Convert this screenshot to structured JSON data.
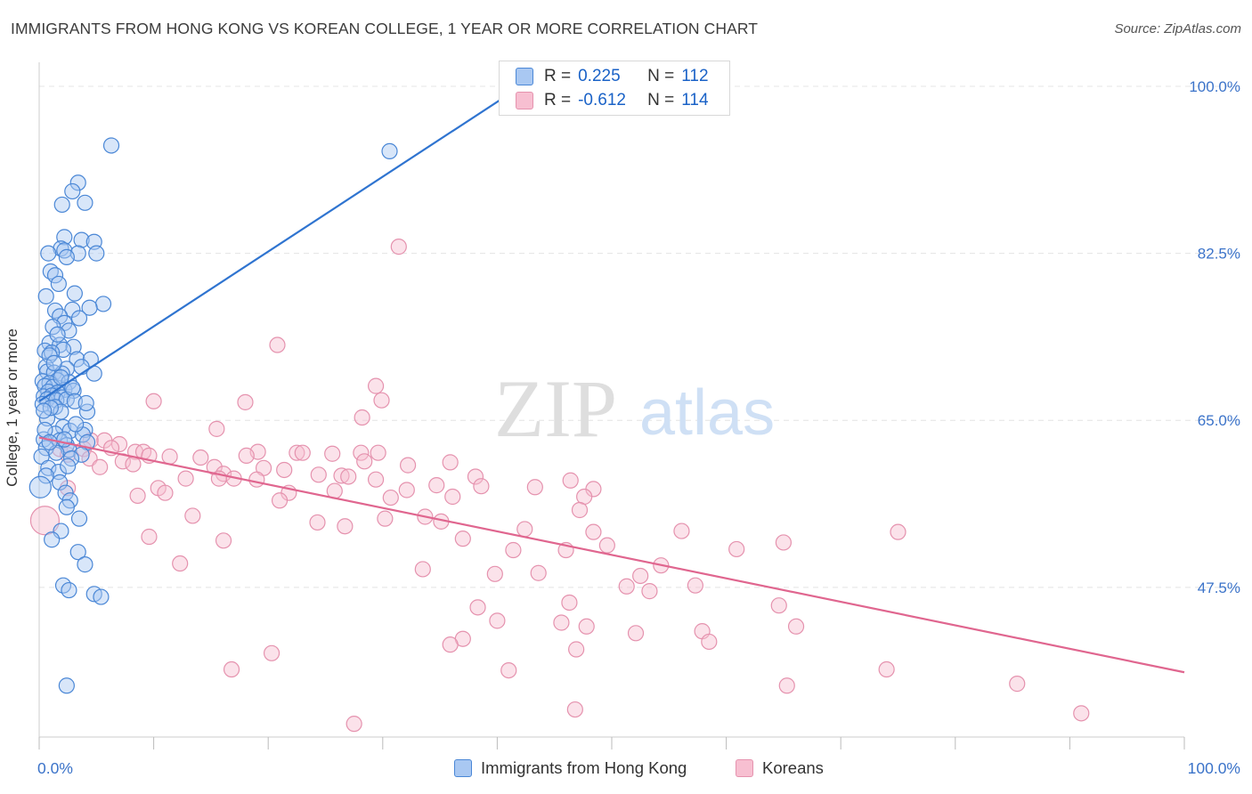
{
  "title": "IMMIGRANTS FROM HONG KONG VS KOREAN COLLEGE, 1 YEAR OR MORE CORRELATION CHART",
  "source": "Source: ZipAtlas.com",
  "watermark": {
    "zip": "ZIP",
    "atlas": "atlas"
  },
  "legend_stats": [
    {
      "r_label": "R =",
      "r_value": "0.225",
      "n_label": "N =",
      "n_value": "112"
    },
    {
      "r_label": "R =",
      "r_value": "-0.612",
      "n_label": "N =",
      "n_value": "114"
    }
  ],
  "chart_data": {
    "type": "scatter",
    "title": "IMMIGRANTS FROM HONG KONG VS KOREAN COLLEGE, 1 YEAR OR MORE CORRELATION CHART",
    "xlabel": "",
    "ylabel": "College, 1 year or more",
    "xlim": [
      0,
      100
    ],
    "ylim": [
      32,
      100
    ],
    "x_tick_labels": [
      {
        "value": 0,
        "label": "0.0%"
      },
      {
        "value": 100,
        "label": "100.0%"
      }
    ],
    "y_tick_labels": [
      {
        "value": 47.5,
        "label": "47.5%"
      },
      {
        "value": 65.0,
        "label": "65.0%"
      },
      {
        "value": 82.5,
        "label": "82.5%"
      },
      {
        "value": 100.0,
        "label": "100.0%"
      }
    ],
    "grid": true,
    "legend_position": "bottom",
    "colors": {
      "hk_fill": "#a9c8f2",
      "hk_stroke": "#4a87d6",
      "hk_line": "#2f74d0",
      "kr_fill": "#f7bfd1",
      "kr_stroke": "#e592ae",
      "kr_line": "#e0668f",
      "grid": "#e4e4e4",
      "tick_label": "#3b73c9"
    },
    "series": [
      {
        "name": "Immigrants from Hong Kong",
        "r": 0.225,
        "n": 112,
        "trend": {
          "x": [
            0.0,
            40.8
          ],
          "y": [
            67.0,
            99.0
          ]
        },
        "points": [
          [
            6.3,
            93.8
          ],
          [
            30.6,
            93.2
          ],
          [
            3.4,
            89.9
          ],
          [
            2.9,
            89.0
          ],
          [
            2.0,
            87.6
          ],
          [
            4.0,
            87.8
          ],
          [
            2.2,
            84.2
          ],
          [
            3.7,
            83.9
          ],
          [
            4.8,
            83.7
          ],
          [
            1.9,
            83.0
          ],
          [
            2.2,
            82.8
          ],
          [
            0.8,
            82.5
          ],
          [
            3.4,
            82.5
          ],
          [
            5.0,
            82.5
          ],
          [
            2.4,
            82.1
          ],
          [
            1.0,
            80.6
          ],
          [
            1.4,
            80.2
          ],
          [
            1.7,
            79.3
          ],
          [
            3.1,
            78.3
          ],
          [
            0.6,
            78.0
          ],
          [
            5.6,
            77.2
          ],
          [
            4.4,
            76.8
          ],
          [
            1.4,
            76.5
          ],
          [
            2.9,
            76.6
          ],
          [
            1.8,
            75.9
          ],
          [
            3.5,
            75.7
          ],
          [
            2.2,
            75.2
          ],
          [
            1.2,
            74.8
          ],
          [
            2.6,
            74.4
          ],
          [
            0.9,
            73.1
          ],
          [
            1.8,
            72.9
          ],
          [
            3.0,
            72.7
          ],
          [
            2.1,
            72.4
          ],
          [
            0.5,
            72.3
          ],
          [
            1.1,
            72.1
          ],
          [
            0.9,
            71.8
          ],
          [
            3.3,
            71.4
          ],
          [
            4.5,
            71.4
          ],
          [
            0.6,
            70.6
          ],
          [
            2.4,
            70.4
          ],
          [
            3.7,
            70.6
          ],
          [
            0.7,
            70.1
          ],
          [
            1.3,
            70.0
          ],
          [
            2.0,
            69.9
          ],
          [
            4.8,
            69.9
          ],
          [
            0.3,
            69.1
          ],
          [
            1.6,
            69.2
          ],
          [
            0.9,
            68.9
          ],
          [
            2.6,
            69.0
          ],
          [
            0.5,
            68.6
          ],
          [
            1.2,
            68.5
          ],
          [
            2.2,
            68.2
          ],
          [
            3.0,
            68.1
          ],
          [
            0.8,
            68.0
          ],
          [
            1.6,
            67.9
          ],
          [
            0.4,
            67.5
          ],
          [
            1.1,
            67.6
          ],
          [
            2.0,
            67.4
          ],
          [
            0.7,
            67.2
          ],
          [
            1.5,
            67.1
          ],
          [
            2.4,
            67.2
          ],
          [
            0.3,
            66.7
          ],
          [
            1.4,
            66.4
          ],
          [
            1.9,
            65.9
          ],
          [
            4.2,
            65.9
          ],
          [
            0.7,
            65.2
          ],
          [
            2.1,
            64.3
          ],
          [
            4.0,
            64.0
          ],
          [
            2.7,
            63.9
          ],
          [
            1.4,
            63.6
          ],
          [
            3.8,
            63.5
          ],
          [
            0.4,
            63.0
          ],
          [
            1.8,
            62.9
          ],
          [
            4.2,
            62.7
          ],
          [
            2.4,
            62.4
          ],
          [
            0.6,
            62.1
          ],
          [
            2.6,
            61.9
          ],
          [
            1.5,
            61.6
          ],
          [
            3.7,
            61.4
          ],
          [
            0.2,
            61.2
          ],
          [
            2.8,
            61.0
          ],
          [
            0.8,
            60.0
          ],
          [
            1.7,
            59.6
          ],
          [
            0.6,
            59.2
          ],
          [
            1.8,
            58.5
          ],
          [
            0.1,
            58.0
          ],
          [
            2.3,
            57.4
          ],
          [
            2.7,
            56.6
          ],
          [
            2.4,
            55.9
          ],
          [
            3.5,
            54.7
          ],
          [
            1.9,
            53.4
          ],
          [
            1.1,
            52.5
          ],
          [
            3.4,
            51.2
          ],
          [
            4.0,
            49.9
          ],
          [
            2.1,
            47.7
          ],
          [
            2.6,
            47.2
          ],
          [
            4.8,
            46.8
          ],
          [
            5.4,
            46.5
          ],
          [
            2.4,
            37.2
          ],
          [
            3.2,
            64.6
          ],
          [
            1.0,
            66.3
          ],
          [
            2.9,
            68.4
          ],
          [
            1.3,
            71.0
          ],
          [
            0.5,
            64.0
          ],
          [
            1.9,
            69.5
          ],
          [
            3.1,
            67.0
          ],
          [
            0.9,
            62.7
          ],
          [
            2.5,
            60.2
          ],
          [
            1.6,
            74.0
          ],
          [
            4.1,
            66.8
          ],
          [
            0.4,
            66.0
          ],
          [
            2.2,
            63.0
          ]
        ]
      },
      {
        "name": "Koreans",
        "r": -0.612,
        "n": 114,
        "trend": {
          "x": [
            0.0,
            100.0
          ],
          "y": [
            63.2,
            38.6
          ]
        },
        "points": [
          [
            0.5,
            54.5
          ],
          [
            31.4,
            83.2
          ],
          [
            20.8,
            72.9
          ],
          [
            29.4,
            68.6
          ],
          [
            10.0,
            67.0
          ],
          [
            18.0,
            66.9
          ],
          [
            29.9,
            67.1
          ],
          [
            28.2,
            65.3
          ],
          [
            15.5,
            64.1
          ],
          [
            4.5,
            62.9
          ],
          [
            5.7,
            62.9
          ],
          [
            7.0,
            62.5
          ],
          [
            3.9,
            62.0
          ],
          [
            6.3,
            62.1
          ],
          [
            1.8,
            62.0
          ],
          [
            8.4,
            61.7
          ],
          [
            2.5,
            61.4
          ],
          [
            9.1,
            61.7
          ],
          [
            9.6,
            61.3
          ],
          [
            19.1,
            61.7
          ],
          [
            22.5,
            61.6
          ],
          [
            23.0,
            61.6
          ],
          [
            28.1,
            61.6
          ],
          [
            29.6,
            61.6
          ],
          [
            11.4,
            61.2
          ],
          [
            14.1,
            61.1
          ],
          [
            18.1,
            61.3
          ],
          [
            4.4,
            61.0
          ],
          [
            7.3,
            60.7
          ],
          [
            8.2,
            60.4
          ],
          [
            25.6,
            61.5
          ],
          [
            35.9,
            60.6
          ],
          [
            32.2,
            60.3
          ],
          [
            5.3,
            60.1
          ],
          [
            15.3,
            60.1
          ],
          [
            16.1,
            59.4
          ],
          [
            19.6,
            60.0
          ],
          [
            21.4,
            59.8
          ],
          [
            28.4,
            60.7
          ],
          [
            24.4,
            59.3
          ],
          [
            26.4,
            59.2
          ],
          [
            27.0,
            59.1
          ],
          [
            15.7,
            58.9
          ],
          [
            17.0,
            58.9
          ],
          [
            19.0,
            58.8
          ],
          [
            12.8,
            58.9
          ],
          [
            29.4,
            58.8
          ],
          [
            38.1,
            59.1
          ],
          [
            46.4,
            58.7
          ],
          [
            38.6,
            58.1
          ],
          [
            34.7,
            58.2
          ],
          [
            43.3,
            58.0
          ],
          [
            48.4,
            57.8
          ],
          [
            10.4,
            57.9
          ],
          [
            2.5,
            57.9
          ],
          [
            11.0,
            57.4
          ],
          [
            25.8,
            57.6
          ],
          [
            21.8,
            57.4
          ],
          [
            32.1,
            57.7
          ],
          [
            36.1,
            57.0
          ],
          [
            8.6,
            57.1
          ],
          [
            21.0,
            56.6
          ],
          [
            30.7,
            56.9
          ],
          [
            47.6,
            57.0
          ],
          [
            47.2,
            55.6
          ],
          [
            13.4,
            55.0
          ],
          [
            24.3,
            54.3
          ],
          [
            33.7,
            54.9
          ],
          [
            35.1,
            54.4
          ],
          [
            30.2,
            54.7
          ],
          [
            26.7,
            53.9
          ],
          [
            42.4,
            53.6
          ],
          [
            48.4,
            53.3
          ],
          [
            56.1,
            53.4
          ],
          [
            75.0,
            53.3
          ],
          [
            65.0,
            52.2
          ],
          [
            9.6,
            52.8
          ],
          [
            16.1,
            52.4
          ],
          [
            37.0,
            52.6
          ],
          [
            41.4,
            51.4
          ],
          [
            60.9,
            51.5
          ],
          [
            46.0,
            51.4
          ],
          [
            49.6,
            51.9
          ],
          [
            12.3,
            50.0
          ],
          [
            33.5,
            49.4
          ],
          [
            43.6,
            49.0
          ],
          [
            39.8,
            48.9
          ],
          [
            52.5,
            48.7
          ],
          [
            54.3,
            49.8
          ],
          [
            51.3,
            47.6
          ],
          [
            57.3,
            47.7
          ],
          [
            53.3,
            47.1
          ],
          [
            46.3,
            45.9
          ],
          [
            64.6,
            45.6
          ],
          [
            38.3,
            45.4
          ],
          [
            40.0,
            44.0
          ],
          [
            45.6,
            43.8
          ],
          [
            47.8,
            43.4
          ],
          [
            57.9,
            42.9
          ],
          [
            52.1,
            42.7
          ],
          [
            66.1,
            43.4
          ],
          [
            37.0,
            42.1
          ],
          [
            58.5,
            41.8
          ],
          [
            35.9,
            41.5
          ],
          [
            46.9,
            41.0
          ],
          [
            20.3,
            40.6
          ],
          [
            41.0,
            38.8
          ],
          [
            65.3,
            37.2
          ],
          [
            16.8,
            38.9
          ],
          [
            46.8,
            34.7
          ],
          [
            27.5,
            33.2
          ],
          [
            74.0,
            38.9
          ],
          [
            85.4,
            37.4
          ],
          [
            91.0,
            34.3
          ]
        ]
      }
    ]
  },
  "legend_bottom": [
    {
      "label": "Immigrants from Hong Kong"
    },
    {
      "label": "Koreans"
    }
  ]
}
